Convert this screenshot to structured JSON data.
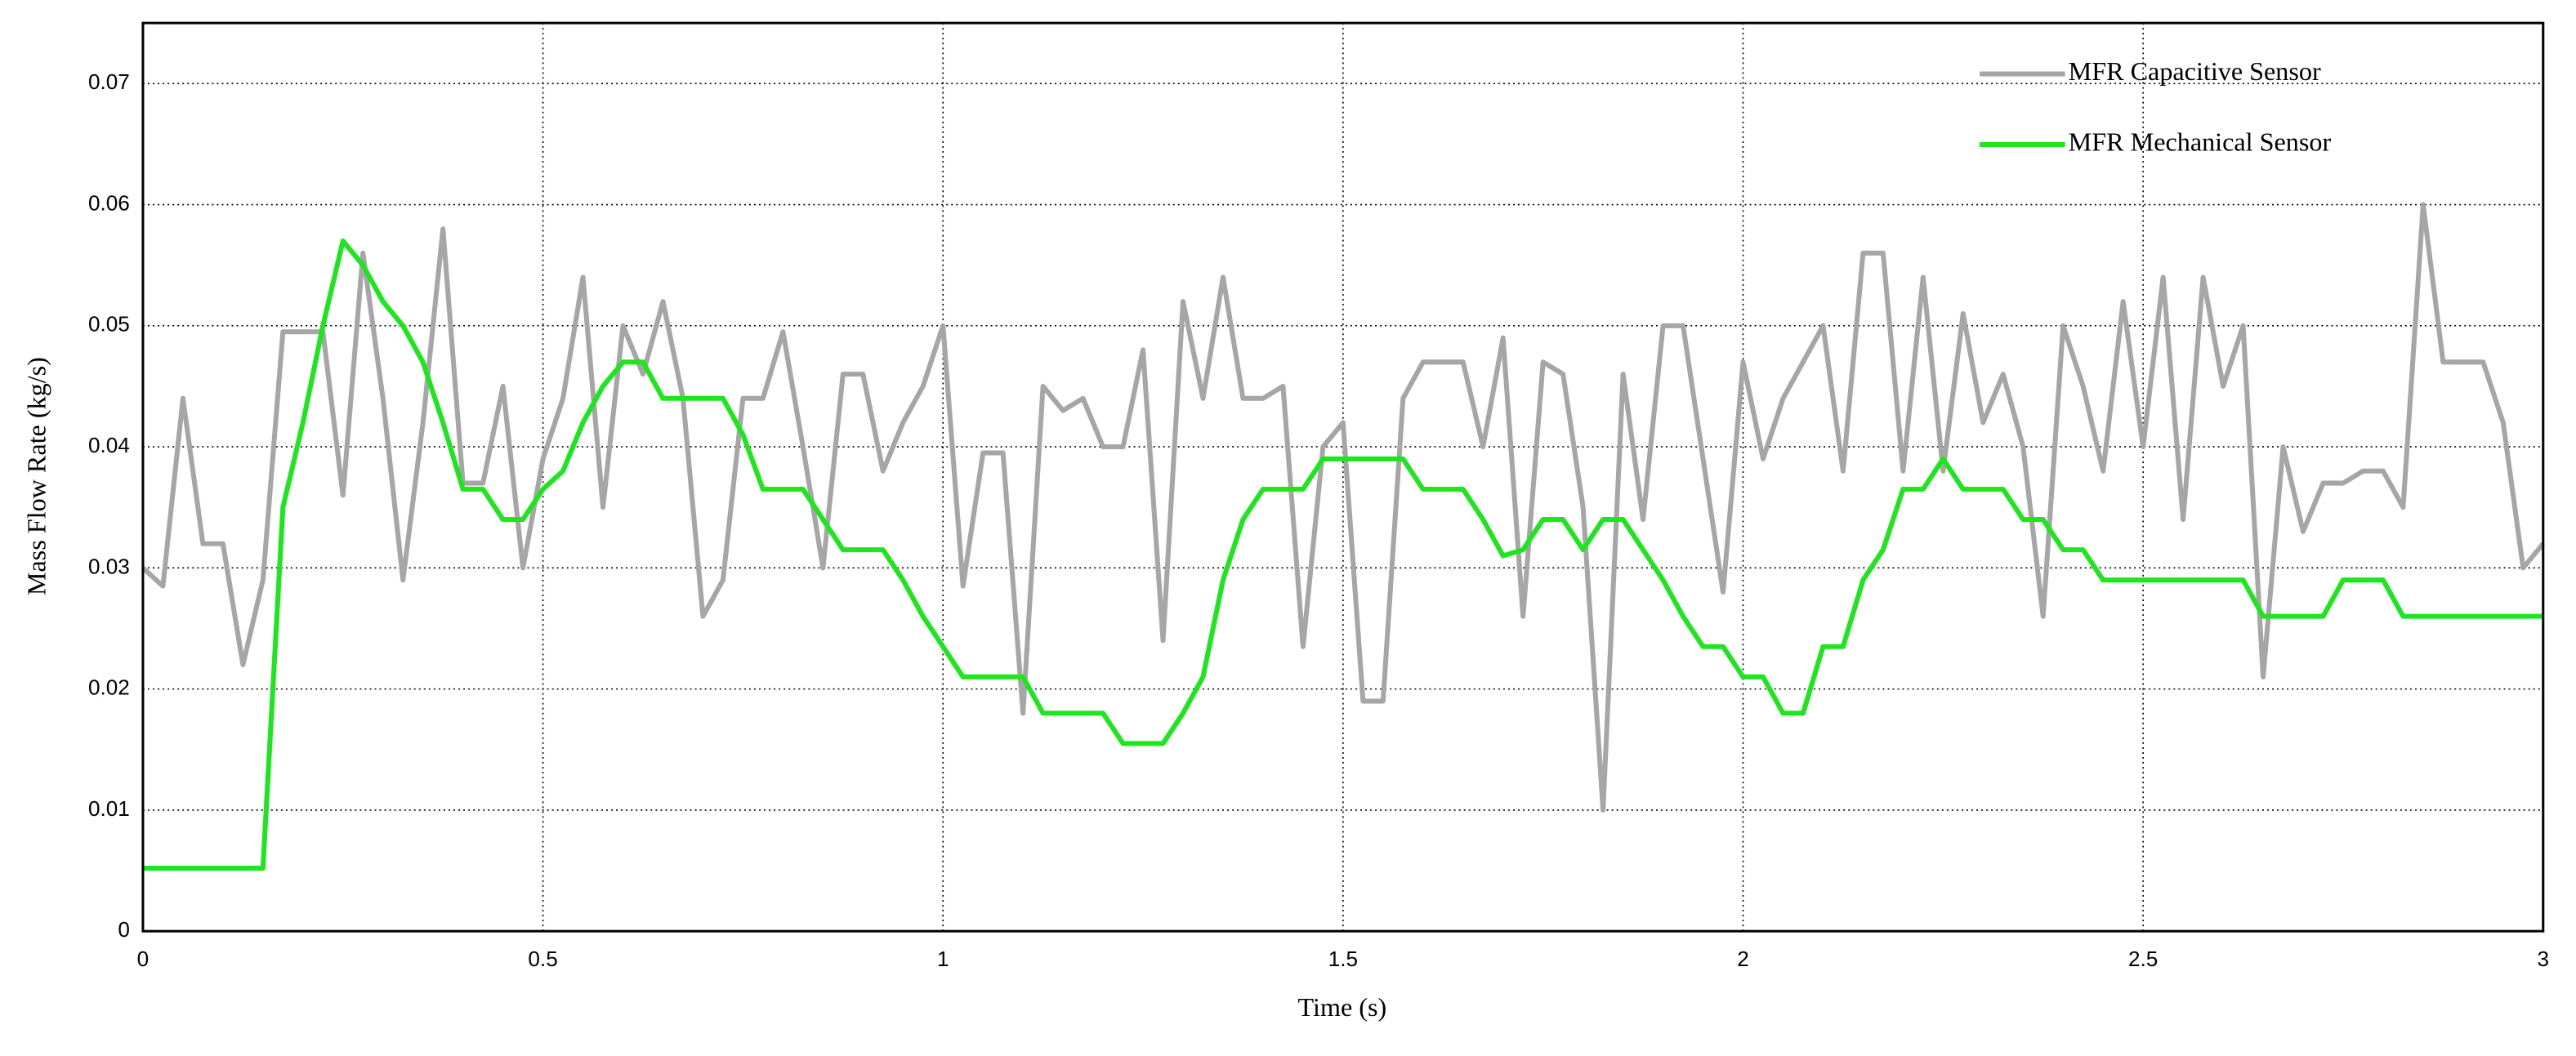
{
  "chart_data": {
    "type": "line",
    "xlabel": "Time (s)",
    "ylabel": "Mass Flow Rate (kg/s)",
    "x": [
      0,
      0.025,
      0.05,
      0.075,
      0.1,
      0.125,
      0.15,
      0.175,
      0.2,
      0.225,
      0.25,
      0.275,
      0.3,
      0.325,
      0.35,
      0.375,
      0.4,
      0.425,
      0.45,
      0.475,
      0.5,
      0.525,
      0.55,
      0.575,
      0.6,
      0.625,
      0.65,
      0.675,
      0.7,
      0.725,
      0.75,
      0.775,
      0.8,
      0.825,
      0.85,
      0.875,
      0.9,
      0.925,
      0.95,
      0.975,
      1,
      1.025,
      1.05,
      1.075,
      1.1,
      1.125,
      1.15,
      1.175,
      1.2,
      1.225,
      1.25,
      1.275,
      1.3,
      1.325,
      1.35,
      1.375,
      1.4,
      1.425,
      1.45,
      1.475,
      1.5,
      1.525,
      1.55,
      1.575,
      1.6,
      1.625,
      1.65,
      1.675,
      1.7,
      1.725,
      1.75,
      1.775,
      1.8,
      1.825,
      1.85,
      1.875,
      1.9,
      1.925,
      1.95,
      1.975,
      2,
      2.025,
      2.05,
      2.075,
      2.1,
      2.125,
      2.15,
      2.175,
      2.2,
      2.225,
      2.25,
      2.275,
      2.3,
      2.325,
      2.35,
      2.375,
      2.4,
      2.425,
      2.45,
      2.475,
      2.5,
      2.525,
      2.55,
      2.575,
      2.6,
      2.625,
      2.65,
      2.675,
      2.7,
      2.725,
      2.75,
      2.775,
      2.8,
      2.825,
      2.85,
      2.875,
      2.9,
      2.925,
      2.95,
      2.975,
      3
    ],
    "series": [
      {
        "name": "MFR  Capacitive Sensor",
        "color": "#a6a6a6",
        "values": [
          0.03,
          0.0285,
          0.044,
          0.032,
          0.032,
          0.022,
          0.029,
          0.0495,
          0.0495,
          0.0495,
          0.036,
          0.056,
          0.044,
          0.029,
          0.042,
          0.058,
          0.037,
          0.037,
          0.045,
          0.03,
          0.039,
          0.044,
          0.054,
          0.035,
          0.05,
          0.046,
          0.052,
          0.044,
          0.026,
          0.029,
          0.044,
          0.044,
          0.0495,
          0.04,
          0.03,
          0.046,
          0.046,
          0.038,
          0.042,
          0.045,
          0.05,
          0.0285,
          0.0395,
          0.0395,
          0.018,
          0.045,
          0.043,
          0.044,
          0.04,
          0.04,
          0.048,
          0.024,
          0.052,
          0.044,
          0.054,
          0.044,
          0.044,
          0.045,
          0.0235,
          0.04,
          0.042,
          0.019,
          0.019,
          0.044,
          0.047,
          0.047,
          0.047,
          0.04,
          0.049,
          0.026,
          0.047,
          0.046,
          0.035,
          0.01,
          0.046,
          0.034,
          0.05,
          0.05,
          0.039,
          0.028,
          0.047,
          0.039,
          0.044,
          0.047,
          0.05,
          0.038,
          0.056,
          0.056,
          0.038,
          0.054,
          0.038,
          0.051,
          0.042,
          0.046,
          0.04,
          0.026,
          0.05,
          0.045,
          0.038,
          0.052,
          0.04,
          0.054,
          0.034,
          0.054,
          0.045,
          0.05,
          0.021,
          0.04,
          0.033,
          0.037,
          0.037,
          0.038,
          0.038,
          0.035,
          0.06,
          0.047,
          0.047,
          0.047,
          0.042,
          0.03,
          0.032
        ]
      },
      {
        "name": "MFR Mechanical Sensor",
        "color": "#1ee61e",
        "values": [
          0.0052,
          0.0052,
          0.0052,
          0.0052,
          0.0052,
          0.0052,
          0.0052,
          0.035,
          0.042,
          0.05,
          0.057,
          0.055,
          0.052,
          0.05,
          0.047,
          0.042,
          0.0365,
          0.0365,
          0.034,
          0.034,
          0.0365,
          0.038,
          0.042,
          0.045,
          0.047,
          0.047,
          0.044,
          0.044,
          0.044,
          0.044,
          0.041,
          0.0365,
          0.0365,
          0.0365,
          0.034,
          0.0315,
          0.0315,
          0.0315,
          0.029,
          0.026,
          0.0235,
          0.021,
          0.021,
          0.021,
          0.021,
          0.018,
          0.018,
          0.018,
          0.018,
          0.0155,
          0.0155,
          0.0155,
          0.018,
          0.021,
          0.029,
          0.034,
          0.0365,
          0.0365,
          0.0365,
          0.039,
          0.039,
          0.039,
          0.039,
          0.039,
          0.0365,
          0.0365,
          0.0365,
          0.034,
          0.031,
          0.0315,
          0.034,
          0.034,
          0.0315,
          0.034,
          0.034,
          0.0315,
          0.029,
          0.026,
          0.0235,
          0.0235,
          0.021,
          0.021,
          0.018,
          0.018,
          0.0235,
          0.0235,
          0.029,
          0.0315,
          0.0365,
          0.0365,
          0.039,
          0.0365,
          0.0365,
          0.0365,
          0.034,
          0.034,
          0.0315,
          0.0315,
          0.029,
          0.029,
          0.029,
          0.029,
          0.029,
          0.029,
          0.029,
          0.029,
          0.026,
          0.026,
          0.026,
          0.026,
          0.029,
          0.029,
          0.029,
          0.026,
          0.026,
          0.026,
          0.026,
          0.026,
          0.026,
          0.026,
          0.026
        ]
      }
    ],
    "xlim": [
      0,
      3
    ],
    "xticks": [
      0,
      0.5,
      1,
      1.5,
      2,
      2.5,
      3
    ],
    "ylim": [
      0,
      0.075
    ],
    "yticks": [
      0,
      0.01,
      0.02,
      0.03,
      0.04,
      0.05,
      0.06,
      0.07
    ],
    "grid": true,
    "legend": "upper right"
  }
}
